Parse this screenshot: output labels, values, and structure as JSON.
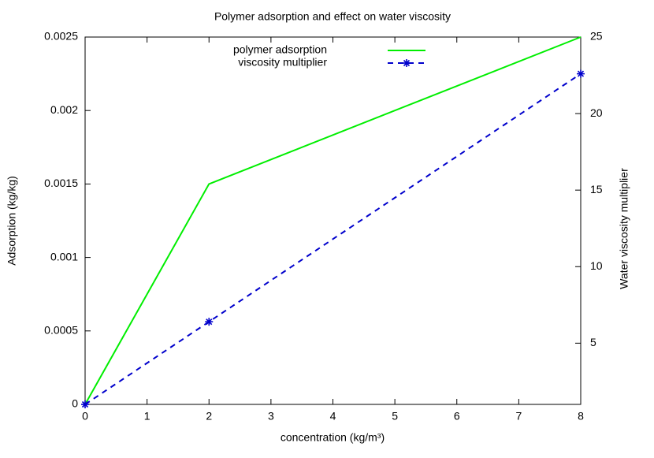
{
  "chart_data": {
    "type": "line",
    "title": "Polymer adsorption and effect on water viscosity",
    "xlabel": "concentration (kg/m³)",
    "ylabel": "Adsorption (kg/kg)",
    "y2label": "Water viscosity multiplier",
    "x": [
      0,
      2,
      8
    ],
    "series": [
      {
        "name": "polymer adsorption",
        "color": "#00ee00",
        "values": [
          0,
          0.0015,
          0.0025
        ],
        "dash": false,
        "marker": false
      },
      {
        "name": "viscosity multiplier",
        "color": "#0000cc",
        "values": [
          1,
          6.4,
          22.6
        ],
        "axis": "y2",
        "dash": true,
        "marker": true
      }
    ],
    "xlim": [
      0,
      8
    ],
    "xticks": [
      0,
      1,
      2,
      3,
      4,
      5,
      6,
      7,
      8
    ],
    "ylim": [
      0,
      0.0025
    ],
    "yticks": [
      0,
      0.0005,
      0.001,
      0.0015,
      0.002,
      0.0025
    ],
    "y2lim": [
      1,
      25
    ],
    "y2ticks": [
      5,
      10,
      15,
      20,
      25
    ],
    "legend": "top"
  }
}
